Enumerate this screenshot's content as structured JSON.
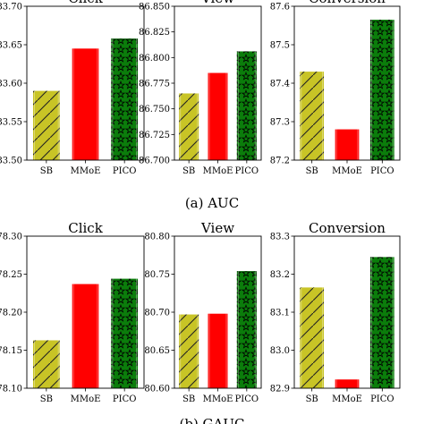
{
  "captions": [
    "(a) AUC",
    "(b) GAUC"
  ],
  "colors": {
    "SB": "#c8c426",
    "MMoE": "#ff0000",
    "PICO": "#0b7d0b"
  },
  "chart_data": [
    {
      "type": "bar",
      "metric": "AUC",
      "title": "Click",
      "categories": [
        "SB",
        "MMoE",
        "PICO"
      ],
      "values": [
        83.59,
        83.645,
        83.658
      ],
      "ylim": [
        83.5,
        83.7
      ],
      "yticks": [
        "83.50",
        "83.55",
        "83.60",
        "83.65",
        "83.70"
      ],
      "grid": false,
      "hatches": [
        "diagonal",
        "none",
        "stars"
      ]
    },
    {
      "type": "bar",
      "metric": "AUC",
      "title": "View",
      "categories": [
        "SB",
        "MMoE",
        "PICO"
      ],
      "values": [
        86.765,
        86.785,
        86.806
      ],
      "ylim": [
        86.7,
        86.85
      ],
      "yticks": [
        "86.700",
        "86.725",
        "86.750",
        "86.775",
        "86.800",
        "86.825",
        "86.850"
      ],
      "grid": false,
      "hatches": [
        "diagonal",
        "none",
        "stars"
      ]
    },
    {
      "type": "bar",
      "metric": "AUC",
      "title": "Conversion",
      "categories": [
        "SB",
        "MMoE",
        "PICO"
      ],
      "values": [
        87.43,
        87.28,
        87.565
      ],
      "ylim": [
        87.2,
        87.6
      ],
      "yticks": [
        "87.2",
        "87.3",
        "87.4",
        "87.5",
        "87.6"
      ],
      "grid": false,
      "hatches": [
        "diagonal",
        "none",
        "stars"
      ]
    },
    {
      "type": "bar",
      "metric": "GAUC",
      "title": "Click",
      "categories": [
        "SB",
        "MMoE",
        "PICO"
      ],
      "values": [
        78.163,
        78.237,
        78.244
      ],
      "ylim": [
        78.1,
        78.3
      ],
      "yticks": [
        "78.10",
        "78.15",
        "78.20",
        "78.25",
        "78.30"
      ],
      "grid": false,
      "hatches": [
        "diagonal",
        "none",
        "stars"
      ]
    },
    {
      "type": "bar",
      "metric": "GAUC",
      "title": "View",
      "categories": [
        "SB",
        "MMoE",
        "PICO"
      ],
      "values": [
        80.697,
        80.698,
        80.754
      ],
      "ylim": [
        80.6,
        80.8
      ],
      "yticks": [
        "80.60",
        "80.65",
        "80.70",
        "80.75",
        "80.80"
      ],
      "grid": false,
      "hatches": [
        "diagonal",
        "none",
        "stars"
      ]
    },
    {
      "type": "bar",
      "metric": "GAUC",
      "title": "Conversion",
      "categories": [
        "SB",
        "MMoE",
        "PICO"
      ],
      "values": [
        83.165,
        82.923,
        83.245
      ],
      "ylim": [
        82.9,
        83.3
      ],
      "yticks": [
        "82.9",
        "83.0",
        "83.1",
        "83.2",
        "83.3"
      ],
      "grid": false,
      "hatches": [
        "diagonal",
        "none",
        "stars"
      ]
    }
  ]
}
